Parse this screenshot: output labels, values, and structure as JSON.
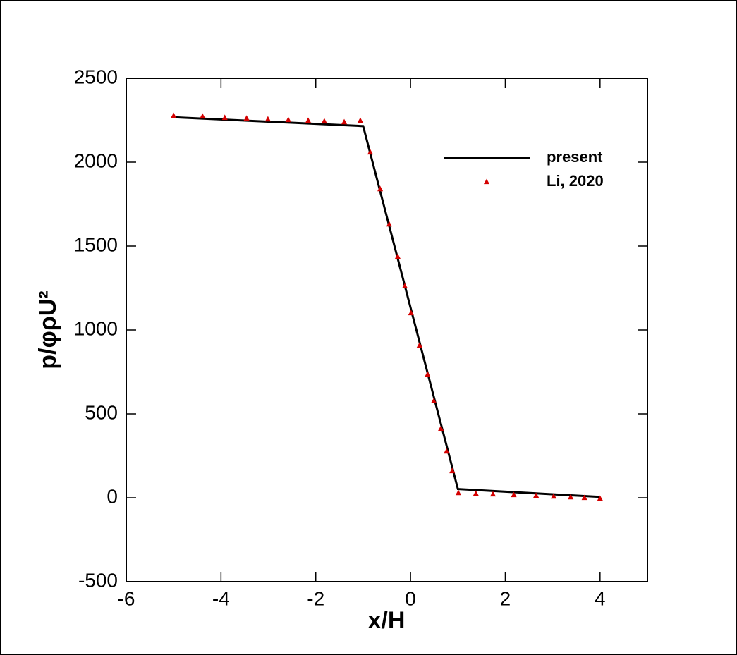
{
  "chart_data": {
    "type": "line-scatter",
    "x_label": "x/H",
    "y_label": "p/φρU²",
    "xlim": [
      -6,
      5
    ],
    "xticks": [
      -6,
      -4,
      -2,
      0,
      2,
      4
    ],
    "ylim": [
      -500,
      2500
    ],
    "yticks": [
      -500,
      0,
      500,
      1000,
      1500,
      2000,
      2500
    ],
    "legend": "upper right",
    "series": [
      {
        "name": "present",
        "kind": "line",
        "color": "#000000",
        "x": [
          -5,
          -1,
          1,
          4
        ],
        "values": [
          2268,
          2215,
          52,
          5
        ]
      },
      {
        "name": "Li, 2020",
        "kind": "scatter",
        "color": "#d40000",
        "x": [
          -5.0,
          -4.39,
          -3.92,
          -3.46,
          -3.01,
          -2.58,
          -2.16,
          -1.82,
          -1.4,
          -1.06,
          -0.85,
          -0.64,
          -0.45,
          -0.27,
          -0.12,
          0.01,
          0.19,
          0.36,
          0.49,
          0.64,
          0.76,
          0.88,
          1.01,
          1.38,
          1.74,
          2.18,
          2.65,
          3.02,
          3.38,
          3.67,
          4.0
        ],
        "values": [
          2277,
          2273,
          2265,
          2261,
          2256,
          2252,
          2248,
          2244,
          2239,
          2248,
          2059,
          1840,
          1630,
          1437,
          1261,
          1101,
          908,
          735,
          576,
          412,
          277,
          160,
          29,
          25,
          21,
          17,
          13,
          8,
          4,
          0,
          -4
        ]
      }
    ]
  }
}
